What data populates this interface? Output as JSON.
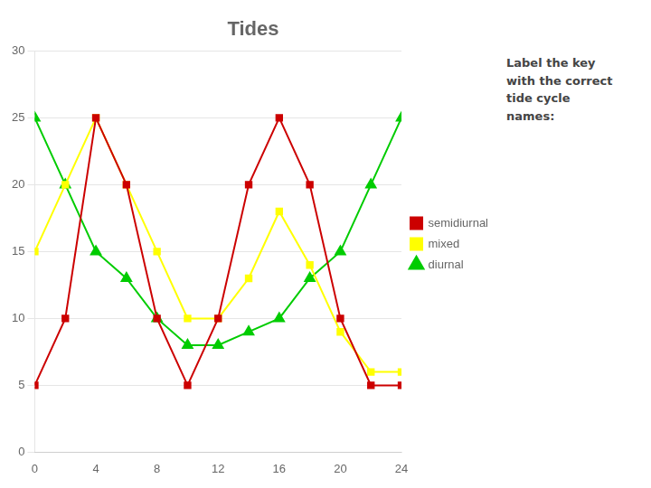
{
  "chart_data": {
    "type": "line",
    "title": "Tides",
    "annotation": "Label the key\nwith the correct\ntide cycle\nnames:",
    "x": [
      0,
      2,
      4,
      6,
      8,
      10,
      12,
      14,
      16,
      18,
      20,
      22,
      24
    ],
    "series": [
      {
        "name": "semidiurnal",
        "color": "#cc0000",
        "marker": "square",
        "values": [
          5,
          10,
          25,
          20,
          10,
          5,
          10,
          20,
          25,
          20,
          10,
          5,
          5
        ]
      },
      {
        "name": "mixed",
        "color": "#ffff00",
        "marker": "square",
        "values": [
          15,
          20,
          25,
          20,
          15,
          10,
          10,
          13,
          18,
          14,
          9,
          6,
          6
        ]
      },
      {
        "name": "diurnal",
        "color": "#00cc00",
        "marker": "triangle",
        "values": [
          25,
          20,
          15,
          13,
          10,
          8,
          8,
          9,
          10,
          13,
          15,
          20,
          25
        ]
      }
    ],
    "xlim": [
      0,
      24
    ],
    "ylim": [
      0,
      30
    ],
    "xticks": [
      0,
      4,
      8,
      12,
      16,
      20,
      24
    ],
    "yticks": [
      0,
      5,
      10,
      15,
      20,
      25,
      30
    ],
    "grid": "y",
    "legend": "right"
  }
}
